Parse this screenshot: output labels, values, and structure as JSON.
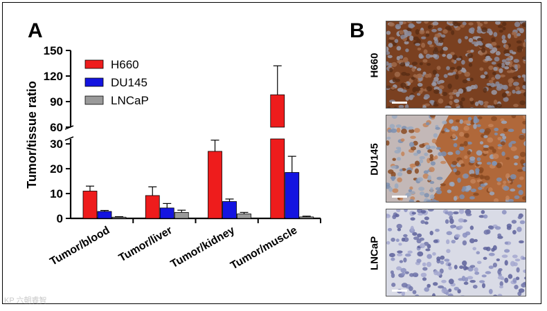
{
  "panels": {
    "a_label": "A",
    "b_label": "B"
  },
  "chart_data": {
    "type": "bar",
    "ylabel": "Tumor/tissue ratio",
    "xlabel": "",
    "categories": [
      "Tumor/blood",
      "Tumor/liver",
      "Tumor/kidney",
      "Tumor/muscle"
    ],
    "series": [
      {
        "name": "H660",
        "color": "#ee1c1c",
        "values": [
          11,
          9.2,
          27,
          98
        ],
        "errors": [
          2,
          3.5,
          4.5,
          34
        ]
      },
      {
        "name": "DU145",
        "color": "#1414e0",
        "values": [
          2.8,
          4.2,
          6.8,
          18.5
        ],
        "errors": [
          0.4,
          1.8,
          1.0,
          6.5
        ]
      },
      {
        "name": "LNCaP",
        "color": "#9a9a9a",
        "values": [
          0.5,
          2.4,
          1.8,
          0.6
        ],
        "errors": [
          0.2,
          0.9,
          0.6,
          0.3
        ]
      }
    ],
    "broken_axis": {
      "lower_range": [
        0,
        32
      ],
      "upper_range": [
        60,
        150
      ]
    },
    "yticks_lower": [
      0,
      10,
      20,
      30
    ],
    "yticks_upper": [
      60,
      90,
      120,
      150
    ],
    "legend_position": "top-left",
    "grid": false
  },
  "histology": {
    "rows": [
      {
        "label": "H660"
      },
      {
        "label": "DU145"
      },
      {
        "label": "LNCaP"
      }
    ]
  },
  "watermark": "KP 六朝睿智"
}
